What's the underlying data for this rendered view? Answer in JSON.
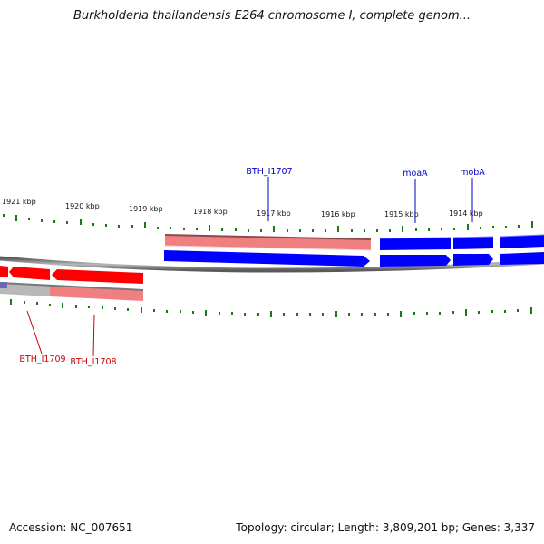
{
  "title": "Burkholderia thailandensis E264 chromosome I, complete genom...",
  "footer": {
    "accession": "Accession: NC_007651",
    "summary": "Topology: circular; Length: 3,809,201 bp; Genes: 3,337"
  },
  "colors": {
    "forward_strand": "#0000ff",
    "reverse_strand": "#ff0000",
    "reverse_shadow": "#f08080",
    "tick": "#1a7a1a",
    "forward_label": "#0000cc",
    "reverse_label": "#cc0000"
  },
  "scale_labels": [
    "1921 kbp",
    "1920 kbp",
    "1919 kbp",
    "1918 kbp",
    "1917 kbp",
    "1916 kbp",
    "1915 kbp",
    "1914 kbp"
  ],
  "gene_labels": {
    "forward": [
      "BTH_I1707",
      "moaA",
      "mobA"
    ],
    "reverse": [
      "BTH_I1709",
      "BTH_I1708"
    ]
  }
}
